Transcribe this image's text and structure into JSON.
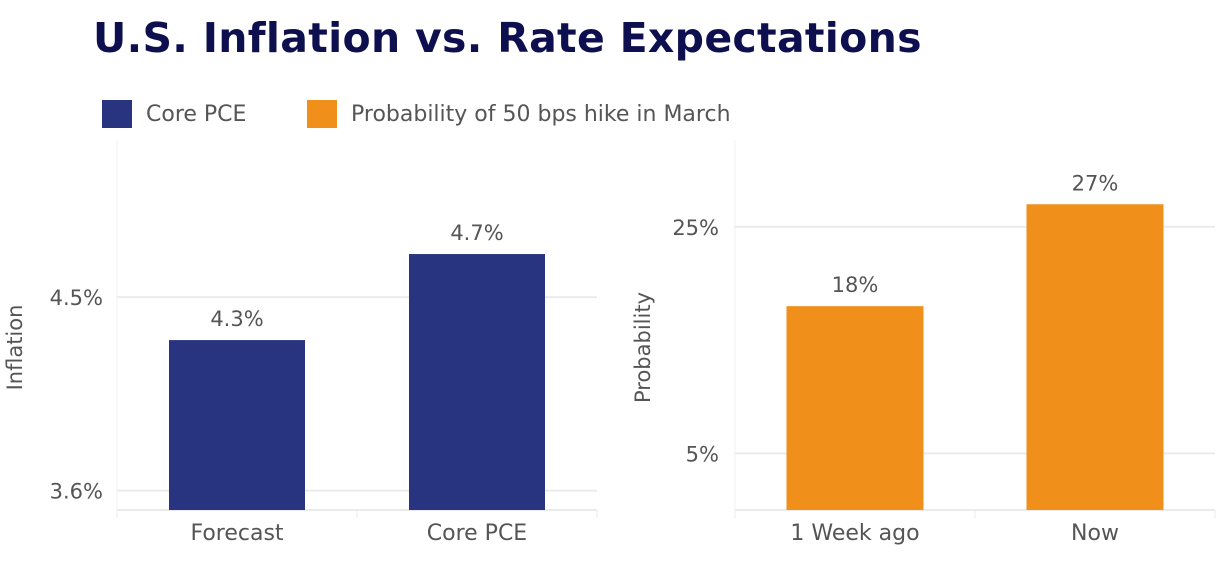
{
  "title": "U.S. Inflation vs. Rate Expectations",
  "legend": [
    {
      "label": "Core PCE",
      "color": "#283480"
    },
    {
      "label": "Probability of 50 bps hike in March",
      "color": "#f18f1b"
    }
  ],
  "chart_data": [
    {
      "type": "bar",
      "categories": [
        "Forecast",
        "Core PCE"
      ],
      "values": [
        4.3,
        4.7
      ],
      "data_labels": [
        "4.3%",
        "4.7%"
      ],
      "ylabel": "Inflation",
      "yticks": [
        3.6,
        4.5
      ],
      "ytick_labels": [
        "3.6%",
        "4.5%"
      ],
      "ylim": [
        3.51,
        5.3
      ],
      "color": "#283480",
      "grid": true
    },
    {
      "type": "bar",
      "categories": [
        "1 Week ago",
        "Now"
      ],
      "values": [
        18,
        27
      ],
      "data_labels": [
        "18%",
        "27%"
      ],
      "ylabel": "Probability",
      "yticks": [
        5,
        25
      ],
      "ytick_labels": [
        "5%",
        "25%"
      ],
      "ylim": [
        0,
        34
      ],
      "color": "#f18f1b",
      "grid": true
    }
  ]
}
